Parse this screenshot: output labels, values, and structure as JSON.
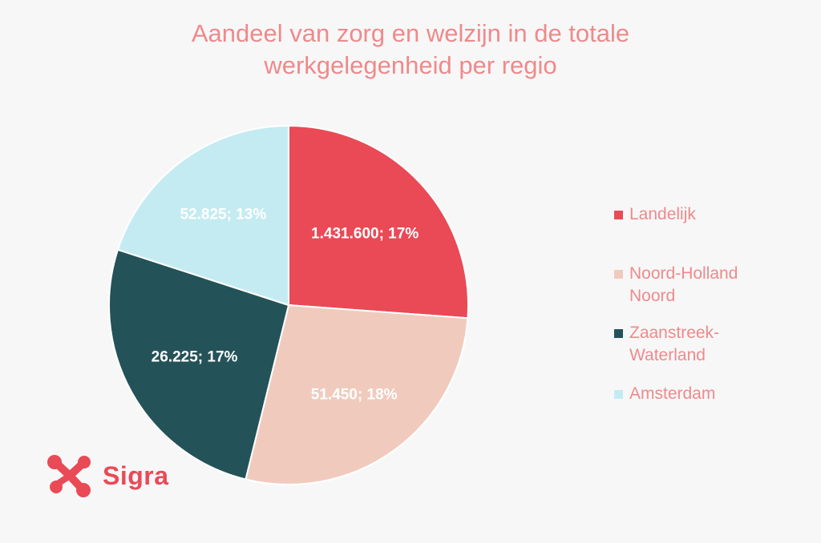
{
  "chart_data": {
    "type": "pie",
    "title_lines": [
      "Aandeel van zorg en welzijn in de totale",
      "werkgelegenheid per regio"
    ],
    "slices": [
      {
        "name": "Landelijk",
        "value": 1431600,
        "percent": 17,
        "label": "1.431.600; 17%",
        "color": "#e94a56",
        "label_color": "#ffffff"
      },
      {
        "name": "Noord-Holland Noord",
        "value": 51450,
        "percent": 18,
        "label": "51.450; 18%",
        "color": "#f0cbbd",
        "label_color": "#ffffff"
      },
      {
        "name": "Zaanstreek-Waterland",
        "value": 26225,
        "percent": 17,
        "label": "26.225; 17%",
        "color": "#245259",
        "label_color": "#ffffff"
      },
      {
        "name": "Amsterdam",
        "value": 52825,
        "percent": 13,
        "label": "52.825; 13%",
        "color": "#c4ebf2",
        "label_color": "#ffffff"
      }
    ],
    "slice_angle_basis": "percent",
    "start": "top",
    "direction": "clockwise",
    "legend_position": "right"
  },
  "legend": {
    "items": [
      {
        "label": "Landelijk",
        "color": "#e94a56"
      },
      {
        "label": "Noord-Holland\nNoord",
        "color": "#f0cbbd"
      },
      {
        "label": "Zaanstreek-\nWaterland",
        "color": "#245259"
      },
      {
        "label": "Amsterdam",
        "color": "#c4ebf2"
      }
    ]
  },
  "logo": {
    "text": "Sigra",
    "color": "#e94a56"
  }
}
